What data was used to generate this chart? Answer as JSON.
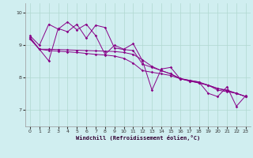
{
  "xlabel": "Windchill (Refroidissement éolien,°C)",
  "xlim": [
    -0.5,
    23.5
  ],
  "ylim": [
    6.5,
    10.3
  ],
  "yticks": [
    7,
    8,
    9,
    10
  ],
  "xticks": [
    0,
    1,
    2,
    3,
    4,
    5,
    6,
    7,
    8,
    9,
    10,
    11,
    12,
    13,
    14,
    15,
    16,
    17,
    18,
    19,
    20,
    21,
    22,
    23
  ],
  "bg_color": "#d0eef0",
  "line_color": "#880088",
  "grid_color": "#b0d8d0",
  "series1_x": [
    0,
    1,
    2,
    3,
    4,
    5,
    6,
    7,
    8,
    9,
    10,
    11,
    12,
    13,
    14,
    15,
    16,
    17,
    18,
    19,
    20,
    21,
    22,
    23
  ],
  "series1_y": [
    9.25,
    8.88,
    8.88,
    8.87,
    8.86,
    8.85,
    8.84,
    8.83,
    8.82,
    8.81,
    8.78,
    8.72,
    8.55,
    8.35,
    8.22,
    8.12,
    7.98,
    7.92,
    7.87,
    7.77,
    7.62,
    7.57,
    7.52,
    7.42
  ],
  "series2_x": [
    0,
    1,
    2,
    3,
    4,
    5,
    6,
    7,
    8,
    9,
    10,
    11,
    12,
    13,
    14,
    15,
    16,
    17,
    18,
    19,
    20,
    21,
    22,
    23
  ],
  "series2_y": [
    9.2,
    8.88,
    8.84,
    8.82,
    8.8,
    8.78,
    8.75,
    8.72,
    8.7,
    8.67,
    8.6,
    8.45,
    8.22,
    8.17,
    8.12,
    8.07,
    7.97,
    7.9,
    7.84,
    7.77,
    7.67,
    7.62,
    7.52,
    7.42
  ],
  "series3_x": [
    0,
    1,
    2,
    3,
    4,
    5,
    6,
    7,
    8,
    9,
    10,
    11,
    12,
    13,
    14,
    15,
    16,
    17,
    18,
    19,
    20,
    21,
    22,
    23
  ],
  "series3_y": [
    9.3,
    9.0,
    9.65,
    9.5,
    9.72,
    9.48,
    9.65,
    9.3,
    8.72,
    9.0,
    8.88,
    9.05,
    8.52,
    7.62,
    8.27,
    8.32,
    7.97,
    7.92,
    7.87,
    7.52,
    7.42,
    7.72,
    7.12,
    7.45
  ],
  "series4_x": [
    0,
    1,
    2,
    3,
    4,
    5,
    6,
    7,
    8,
    9,
    10,
    11,
    12,
    13,
    14,
    15,
    16,
    17,
    18,
    19,
    20,
    21,
    22,
    23
  ],
  "series4_y": [
    9.2,
    8.88,
    8.52,
    9.52,
    9.42,
    9.65,
    9.22,
    9.62,
    9.55,
    8.92,
    8.87,
    8.84,
    8.42,
    8.32,
    8.22,
    8.12,
    7.97,
    7.9,
    7.84,
    7.77,
    7.67,
    7.6,
    7.52,
    7.42
  ]
}
